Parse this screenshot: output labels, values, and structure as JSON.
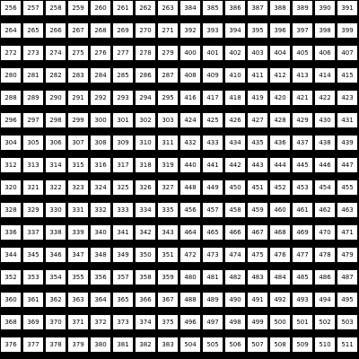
{
  "grid": {
    "rows": [
      [
        "256",
        "257",
        "258",
        "259",
        "260",
        "261",
        "262",
        "263",
        "384",
        "385",
        "386",
        "387",
        "388",
        "389",
        "390",
        "391"
      ],
      [
        "264",
        "265",
        "266",
        "267",
        "268",
        "269",
        "270",
        "271",
        "392",
        "393",
        "394",
        "395",
        "396",
        "397",
        "398",
        "399"
      ],
      [
        "272",
        "273",
        "274",
        "275",
        "276",
        "277",
        "278",
        "279",
        "400",
        "401",
        "402",
        "403",
        "404",
        "405",
        "406",
        "407"
      ],
      [
        "280",
        "281",
        "282",
        "283",
        "284",
        "285",
        "286",
        "287",
        "408",
        "409",
        "410",
        "411",
        "412",
        "413",
        "414",
        "415"
      ],
      [
        "288",
        "289",
        "290",
        "291",
        "292",
        "293",
        "294",
        "295",
        "416",
        "417",
        "418",
        "419",
        "420",
        "421",
        "422",
        "423"
      ],
      [
        "296",
        "297",
        "298",
        "299",
        "300",
        "301",
        "302",
        "303",
        "424",
        "425",
        "426",
        "427",
        "428",
        "429",
        "430",
        "431"
      ],
      [
        "304",
        "305",
        "306",
        "307",
        "308",
        "309",
        "310",
        "311",
        "432",
        "433",
        "434",
        "435",
        "436",
        "437",
        "438",
        "439"
      ],
      [
        "312",
        "313",
        "314",
        "315",
        "316",
        "317",
        "318",
        "319",
        "440",
        "441",
        "442",
        "443",
        "444",
        "445",
        "446",
        "447"
      ],
      [
        "320",
        "321",
        "322",
        "323",
        "324",
        "325",
        "326",
        "327",
        "448",
        "449",
        "450",
        "451",
        "452",
        "453",
        "454",
        "455"
      ],
      [
        "328",
        "329",
        "330",
        "331",
        "332",
        "333",
        "334",
        "335",
        "456",
        "457",
        "458",
        "459",
        "460",
        "461",
        "462",
        "463"
      ],
      [
        "336",
        "337",
        "338",
        "339",
        "340",
        "341",
        "342",
        "343",
        "464",
        "465",
        "466",
        "467",
        "468",
        "469",
        "470",
        "471"
      ],
      [
        "344",
        "345",
        "346",
        "347",
        "348",
        "349",
        "350",
        "351",
        "472",
        "473",
        "474",
        "475",
        "476",
        "477",
        "478",
        "479"
      ],
      [
        "352",
        "353",
        "354",
        "355",
        "356",
        "357",
        "358",
        "359",
        "480",
        "481",
        "482",
        "483",
        "484",
        "485",
        "486",
        "487"
      ],
      [
        "360",
        "361",
        "362",
        "363",
        "364",
        "365",
        "366",
        "367",
        "488",
        "489",
        "490",
        "491",
        "492",
        "493",
        "494",
        "495"
      ],
      [
        "368",
        "369",
        "370",
        "371",
        "372",
        "373",
        "374",
        "375",
        "496",
        "497",
        "498",
        "499",
        "500",
        "501",
        "502",
        "503"
      ],
      [
        "376",
        "377",
        "378",
        "379",
        "380",
        "381",
        "382",
        "383",
        "504",
        "505",
        "506",
        "507",
        "508",
        "509",
        "510",
        "511"
      ]
    ]
  }
}
